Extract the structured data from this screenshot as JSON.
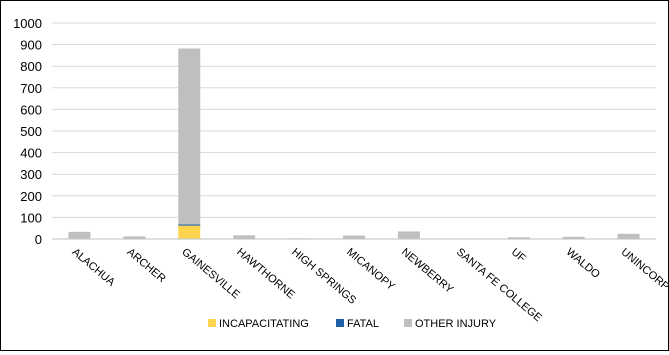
{
  "chart_data": {
    "type": "bar",
    "stacked": true,
    "categories": [
      "ALACHUA",
      "ARCHER",
      "GAINESVILLE",
      "HAWTHORNE",
      "HIGH SPRINGS",
      "MICANOPY",
      "NEWBERRY",
      "SANTA FE COLLEGE",
      "UF",
      "WALDO",
      "UNINCORP"
    ],
    "series": [
      {
        "name": "INCAPACITATING",
        "color": "#FFD54F",
        "values": [
          3,
          1,
          62,
          1,
          0,
          1,
          3,
          0,
          0,
          1,
          2
        ]
      },
      {
        "name": "FATAL",
        "color": "#1F5FA8",
        "values": [
          0,
          0,
          5,
          0,
          0,
          0,
          0,
          0,
          0,
          0,
          0
        ]
      },
      {
        "name": "OTHER INJURY",
        "color": "#BFBFBF",
        "values": [
          30,
          11,
          815,
          16,
          3,
          15,
          32,
          1,
          8,
          9,
          22
        ]
      }
    ],
    "ylim": [
      0,
      1000
    ],
    "yticks": [
      0,
      100,
      200,
      300,
      400,
      500,
      600,
      700,
      800,
      900,
      1000
    ],
    "grid": true,
    "legend": "bottom"
  }
}
